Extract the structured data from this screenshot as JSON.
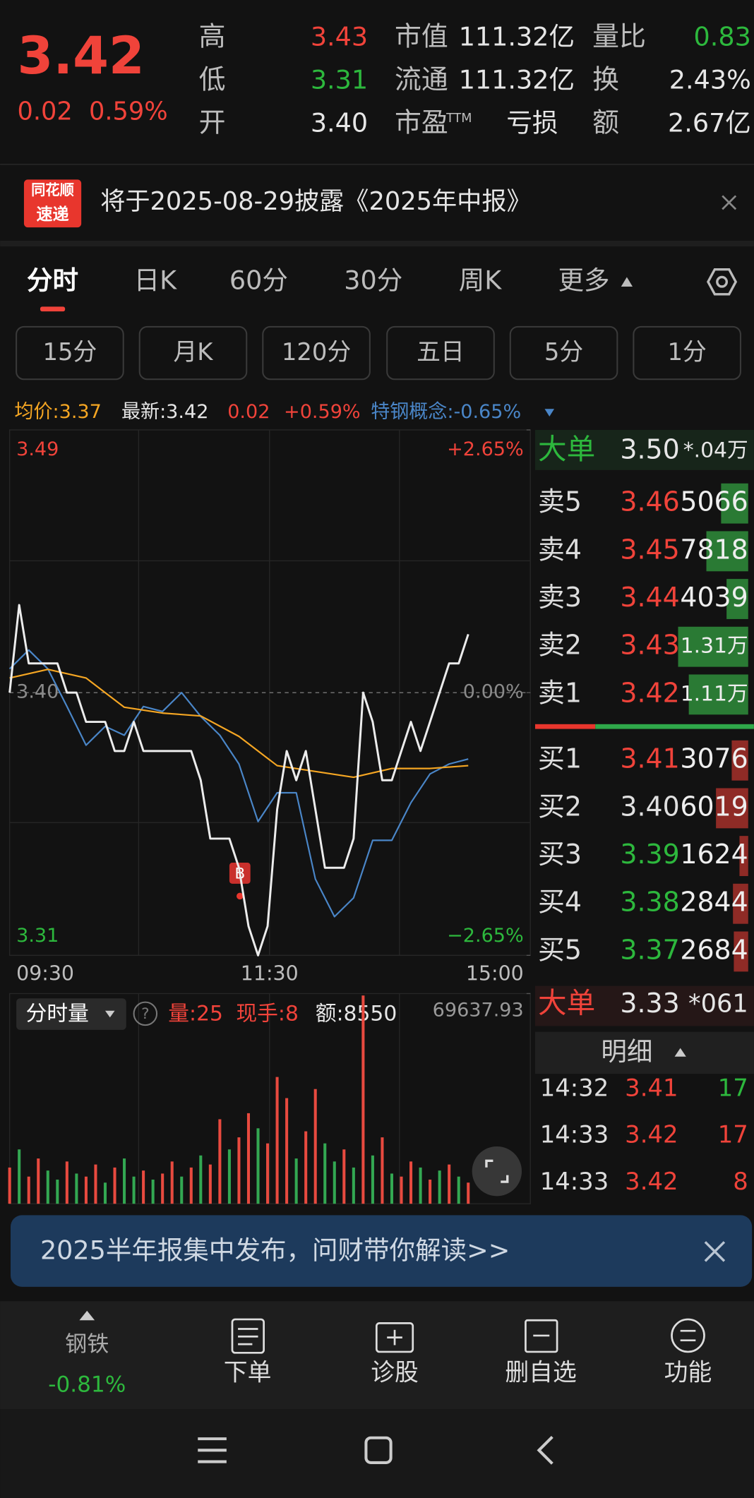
{
  "quote": {
    "price": "3.42",
    "change": "0.02",
    "change_pct": "0.59%",
    "stats": [
      [
        {
          "label": "高",
          "value": "3.43",
          "color": "#f0433a"
        },
        {
          "label": "市值",
          "value": "111.32亿"
        },
        {
          "label": "量比",
          "value": "0.83",
          "color": "#2db83d"
        }
      ],
      [
        {
          "label": "低",
          "value": "3.31",
          "color": "#2db83d"
        },
        {
          "label": "流通",
          "value": "111.32亿"
        },
        {
          "label": "换",
          "value": "2.43%"
        }
      ],
      [
        {
          "label": "开",
          "value": "3.40"
        },
        {
          "label": "市盈",
          "label_sup": "TTM",
          "value": "亏损"
        },
        {
          "label": "额",
          "value": "2.67亿"
        }
      ]
    ]
  },
  "notice": {
    "badge": [
      "同花顺",
      "速递"
    ],
    "text": "将于2025-08-29披露《2025年中报》"
  },
  "tabs": [
    "分时",
    "日K",
    "60分",
    "30分",
    "周K",
    "更多"
  ],
  "periods": [
    "15分",
    "月K",
    "120分",
    "五日",
    "5分",
    "1分"
  ],
  "info": {
    "avg": "均价:3.37",
    "latest": "最新:3.42",
    "change": "0.02",
    "change_pct": "+0.59%",
    "sector": "特钢概念:-0.65%"
  },
  "chart_data": {
    "type": "line",
    "xticks": [
      "09:30",
      "11:30",
      "15:00"
    ],
    "ylim": [
      3.31,
      3.49
    ],
    "yticks": [
      3.31,
      {
        "value": 3.4,
        "label": "3.40"
      },
      3.49
    ],
    "y2lim": [
      -2.65,
      2.65
    ],
    "y2ticks": [
      {
        "value": -2.65,
        "label": "−2.65%"
      },
      {
        "value": 0,
        "label": "0.00%"
      },
      {
        "value": 2.65,
        "label": "+2.65%"
      }
    ],
    "series": [
      {
        "color": "#ececec",
        "values": [
          3.4,
          3.43,
          3.41,
          3.41,
          3.41,
          3.41,
          3.4,
          3.4,
          3.39,
          3.39,
          3.39,
          3.38,
          3.38,
          3.39,
          3.38,
          3.38,
          3.38,
          3.38,
          3.38,
          3.38,
          3.37,
          3.35,
          3.35,
          3.35,
          3.34,
          3.32,
          3.31,
          3.32,
          3.36,
          3.38,
          3.37,
          3.38,
          3.36,
          3.34,
          3.34,
          3.34,
          3.35,
          3.4,
          3.39,
          3.37,
          3.37,
          3.38,
          3.39,
          3.38,
          3.39,
          3.4,
          3.41,
          3.41,
          3.42
        ]
      },
      {
        "color": "#f5a623",
        "values": [
          3.405,
          3.408,
          3.405,
          3.395,
          3.393,
          3.392,
          3.385,
          3.375,
          3.373,
          3.371,
          3.374,
          3.374,
          3.375
        ]
      },
      {
        "color": "#4a86c8",
        "axis": "y2",
        "values": [
          0.24,
          0.43,
          0.24,
          -0.14,
          -0.53,
          -0.34,
          -0.43,
          -0.14,
          -0.19,
          0,
          -0.24,
          -0.43,
          -0.72,
          -1.3,
          -1.01,
          -1.01,
          -1.88,
          -2.26,
          -2.07,
          -1.49,
          -1.49,
          -1.11,
          -0.82,
          -0.72,
          -0.67
        ]
      }
    ],
    "marker": {
      "label": "B"
    }
  },
  "volume": {
    "type": "bar",
    "button": "分时量",
    "volume": "量:25",
    "hand": "现手:8",
    "amount": "额:8550",
    "ylim": [
      0,
      69637.93
    ],
    "yticks": [
      69637.93
    ],
    "values": [
      12000,
      18000,
      9000,
      15000,
      11000,
      8000,
      14000,
      10000,
      9000,
      13000,
      7000,
      12000,
      15000,
      9000,
      11000,
      8000,
      10000,
      14000,
      9000,
      12000,
      16000,
      13000,
      28000,
      18000,
      22000,
      30000,
      25000,
      20000,
      42000,
      35000,
      15000,
      24000,
      38000,
      20000,
      14000,
      18000,
      12000,
      69000,
      16000,
      22000,
      10000,
      9000,
      14000,
      12000,
      8000,
      11000,
      13000,
      9000,
      7000
    ],
    "colors": [
      "#e84a3f",
      "#33a852",
      "#e84a3f",
      "#e84a3f",
      "#33a852",
      "#33a852",
      "#e84a3f",
      "#33a852",
      "#e84a3f",
      "#e84a3f",
      "#33a852",
      "#e84a3f",
      "#33a852",
      "#33a852",
      "#e84a3f",
      "#33a852",
      "#e84a3f",
      "#e84a3f",
      "#33a852",
      "#e84a3f",
      "#33a852",
      "#e84a3f",
      "#e84a3f",
      "#33a852",
      "#e84a3f",
      "#e84a3f",
      "#33a852",
      "#e84a3f",
      "#e84a3f",
      "#e84a3f",
      "#33a852",
      "#e84a3f",
      "#e84a3f",
      "#33a852",
      "#33a852",
      "#e84a3f",
      "#33a852",
      "#e84a3f",
      "#33a852",
      "#e84a3f",
      "#33a852",
      "#e84a3f",
      "#e84a3f",
      "#33a852",
      "#e84a3f",
      "#33a852",
      "#e84a3f",
      "#33a852",
      "#e84a3f"
    ]
  },
  "order_book": {
    "big_sell": {
      "label": "大单",
      "price": "3.50",
      "volume": "*.04万"
    },
    "asks": [
      {
        "label": "卖5",
        "price": "3.46",
        "color": "#f0433a",
        "volume": 5066
      },
      {
        "label": "卖4",
        "price": "3.45",
        "color": "#f0433a",
        "volume": 7818
      },
      {
        "label": "卖3",
        "price": "3.44",
        "color": "#f0433a",
        "volume": 4039
      },
      {
        "label": "卖2",
        "price": "3.43",
        "color": "#f0433a",
        "volume": 13100,
        "volume_label": "1.31万"
      },
      {
        "label": "卖1",
        "price": "3.42",
        "color": "#f0433a",
        "volume": 11100,
        "volume_label": "1.11万"
      }
    ],
    "bids": [
      {
        "label": "买1",
        "price": "3.41",
        "color": "#f0433a",
        "volume": 3076
      },
      {
        "label": "买2",
        "price": "3.40",
        "color": "#e0e0e0",
        "volume": 6019
      },
      {
        "label": "买3",
        "price": "3.39",
        "color": "#2db83d",
        "volume": 1624
      },
      {
        "label": "买4",
        "price": "3.38",
        "color": "#2db83d",
        "volume": 2844
      },
      {
        "label": "买5",
        "price": "3.37",
        "color": "#2db83d",
        "volume": 2684
      }
    ],
    "big_buy": {
      "label": "大单",
      "price": "3.33",
      "volume": "*061"
    }
  },
  "detail": {
    "title": "明细",
    "rows": [
      {
        "time": "14:32",
        "price": "3.41",
        "volume": "17",
        "color": "#f0433a",
        "volume_color": "#2db83d"
      },
      {
        "time": "14:33",
        "price": "3.42",
        "volume": "17",
        "color": "#f0433a",
        "volume_color": "#f0433a"
      },
      {
        "time": "14:33",
        "price": "3.42",
        "volume": "8",
        "color": "#f0433a",
        "volume_color": "#f0433a"
      }
    ]
  },
  "ad": {
    "text": "2025半年报集中发布，问财带你解读>>"
  },
  "bottom_nav": {
    "sector": "钢铁",
    "sector_change": "-0.81%",
    "items": [
      "下单",
      "诊股",
      "删自选",
      "功能"
    ]
  }
}
